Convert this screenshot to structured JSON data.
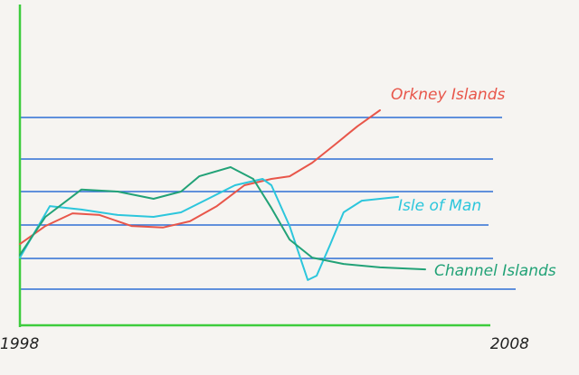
{
  "chart_data": {
    "type": "line",
    "xlim": [
      1998,
      2008
    ],
    "xticks": [
      1998,
      2008
    ],
    "ylim": [
      0,
      100
    ],
    "series": [
      {
        "name": "Orkney Islands",
        "color": "#e8564a",
        "x": [
          1998,
          1998.52,
          1999.07,
          1999.62,
          2000.27,
          2000.91,
          2001.46,
          2002.01,
          2002.57,
          2003.12,
          2003.49,
          2003.95,
          2004.41,
          2004.87,
          2005.33
        ],
        "values": [
          25.7,
          31.4,
          35.4,
          34.9,
          31.4,
          30.9,
          32.9,
          37.7,
          44.3,
          46.3,
          47.1,
          51.4,
          57.1,
          62.9,
          68
        ]
      },
      {
        "name": "Isle of Man",
        "color": "#2cc6dc",
        "x": [
          1998,
          1998.61,
          1999.25,
          1999.99,
          2000.72,
          2001.28,
          2001.83,
          2002.38,
          2002.94,
          2003.12,
          2003.49,
          2003.86,
          2004.04,
          2004.32,
          2004.59,
          2004.96,
          2005.7
        ],
        "values": [
          21.4,
          37.7,
          36.6,
          34.9,
          34.3,
          35.7,
          40,
          44.3,
          46.3,
          44.3,
          31.4,
          14.3,
          15.7,
          25.7,
          35.7,
          39.4,
          40.6
        ]
      },
      {
        "name": "Channel Islands",
        "color": "#22a277",
        "x": [
          1998,
          1998.52,
          1999.25,
          1999.99,
          2000.72,
          2001.28,
          2001.65,
          2002.29,
          2002.75,
          2003.12,
          2003.49,
          2003.95,
          2004.59,
          2005.33,
          2006.25
        ],
        "values": [
          22.3,
          34.3,
          42.9,
          42.3,
          40,
          42.3,
          47.1,
          50,
          46.3,
          37.1,
          27.1,
          21.4,
          19.4,
          18.3,
          17.7
        ]
      }
    ]
  }
}
